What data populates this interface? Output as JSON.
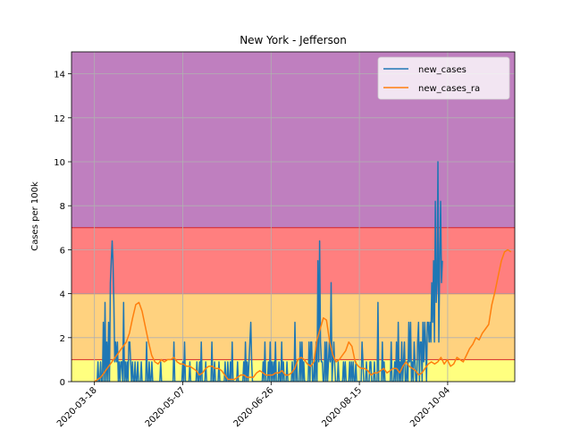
{
  "chart_data": {
    "type": "line",
    "title": "New York - Jefferson",
    "xlabel": "",
    "ylabel": "Cases per 100k",
    "ylim": [
      0,
      15
    ],
    "xlim": [
      "2020-03-05",
      "2020-11-11"
    ],
    "yticks": [
      0,
      2,
      4,
      6,
      8,
      10,
      12,
      14
    ],
    "xticks": [
      "2020-03-18",
      "2020-05-07",
      "2020-06-26",
      "2020-08-15",
      "2020-10-04"
    ],
    "grid": true,
    "legend_position": "top-right",
    "bands": [
      {
        "from": 0,
        "to": 1,
        "color": "#ffff7f"
      },
      {
        "from": 1,
        "to": 4,
        "color": "#ffd27f"
      },
      {
        "from": 4,
        "to": 7,
        "color": "#ff7f7f"
      },
      {
        "from": 7,
        "to": 15,
        "color": "#bf7fbf"
      }
    ],
    "band_edge_color": "#d62728",
    "series": [
      {
        "name": "new_cases",
        "color": "#1f77b4",
        "start": "2020-03-18",
        "values": [
          0,
          0,
          0,
          0,
          0.9,
          0,
          0,
          0.9,
          0,
          0,
          2.7,
          0,
          3.6,
          0,
          1.8,
          0,
          2.7,
          0,
          4.5,
          5.5,
          6.4,
          5.5,
          3.6,
          0.9,
          1.8,
          0.9,
          1.8,
          0,
          0.9,
          0,
          0.9,
          0.9,
          0,
          3.6,
          0,
          0.9,
          0,
          0.9,
          0,
          1.8,
          1.8,
          0.9,
          0,
          0.9,
          0,
          0,
          0.9,
          0,
          0,
          0.9,
          0,
          0,
          0,
          0.9,
          0,
          0,
          0,
          0,
          0,
          1.8,
          0,
          0,
          0.9,
          0,
          0,
          0.9,
          0,
          0,
          0,
          0,
          0,
          0,
          0,
          0,
          0,
          0.9,
          0,
          0,
          0,
          0,
          0,
          0,
          0,
          0,
          0,
          0,
          0,
          0,
          0,
          0,
          1.8,
          0,
          0,
          0,
          0,
          0,
          0,
          0,
          0,
          0,
          0.9,
          0,
          1.8,
          0,
          0,
          0,
          0,
          0,
          0.9,
          0,
          0,
          0,
          0,
          0,
          0,
          0,
          0.9,
          0,
          0,
          0.9,
          0,
          1.8,
          0,
          0,
          0,
          0,
          0.9,
          0,
          0,
          0,
          0,
          0,
          0,
          1.8,
          0,
          0,
          0.9,
          0,
          0,
          0,
          0,
          0.9,
          0,
          0,
          0,
          0,
          0,
          0,
          0.9,
          0,
          0,
          0.9,
          0,
          0,
          0.9,
          0,
          1.8,
          0,
          0,
          0,
          0,
          0,
          0.9,
          0,
          0,
          0,
          0,
          0,
          0,
          0.9,
          0,
          1.8,
          0,
          0.9,
          0,
          0.9,
          1.8,
          2.7,
          0.9,
          0,
          0,
          0,
          0,
          0,
          0,
          0,
          0,
          0,
          0,
          0,
          0,
          0.9,
          0,
          1.8,
          0,
          0,
          0,
          0.9,
          0,
          1.8,
          0,
          0.9,
          0,
          0.9,
          0,
          1.8,
          0,
          0,
          0,
          0.9,
          0,
          0,
          1.8,
          0,
          0.9,
          0,
          0,
          0,
          0.9,
          0,
          0,
          0,
          0,
          0,
          0.9,
          0,
          0,
          2.7,
          0,
          0.9,
          0,
          0,
          0,
          1.8,
          0,
          1.8,
          0,
          0.9,
          0,
          0,
          0,
          0,
          0,
          1.8,
          0,
          1.8,
          1.8,
          0,
          0,
          0.9,
          0,
          1.8,
          0,
          5.5,
          0.9,
          6.4,
          1.8,
          0.9,
          0.9,
          0,
          0,
          1.8,
          0,
          1.8,
          0,
          0.9,
          1.8,
          0.9,
          4.5,
          0,
          0.9,
          1.8,
          0.9,
          0,
          0,
          0,
          0.9,
          0,
          0,
          0,
          0,
          0,
          0.9,
          0,
          0.9,
          0,
          0,
          0,
          0,
          0.9,
          0,
          0.9,
          0,
          0.9,
          0,
          0,
          0.9,
          0,
          0,
          0,
          0,
          0,
          0,
          1.8,
          0.9,
          0,
          0,
          0,
          0.9,
          0,
          0,
          0,
          0.9,
          0.9,
          0,
          0,
          0,
          0.9,
          0,
          0,
          0,
          3.6,
          0,
          0,
          0,
          0,
          1.8,
          0,
          0.9,
          0,
          0,
          0,
          0,
          0,
          0,
          0,
          1.8,
          0,
          0,
          0,
          0.9,
          0,
          1.8,
          0,
          2.7,
          0,
          0.9,
          0,
          1.8,
          0,
          0.9,
          1.8,
          0,
          0,
          0.9,
          0,
          2.7,
          0.9,
          2.7,
          0,
          0.9,
          0,
          1.8,
          0.9,
          0,
          0,
          1.8,
          2.7,
          0,
          1.8,
          1.8,
          0,
          2.7,
          0.9,
          2.7,
          1.8,
          0,
          2.7,
          2.7,
          1.8,
          2.7,
          1.8,
          4.5,
          2.7,
          5.5,
          1.8,
          8.2,
          3.6,
          4.5,
          10.0,
          1.8,
          5.5,
          8.2,
          4.5,
          5.5
        ],
        "step_days": 0.5
      },
      {
        "name": "new_cases_ra",
        "color": "#ff7f0e",
        "start": "2020-03-18",
        "values": [
          0,
          0.1,
          0.2,
          0.4,
          0.6,
          0.8,
          1.0,
          1.2,
          1.4,
          1.6,
          1.8,
          2.2,
          2.9,
          3.5,
          3.6,
          3.2,
          2.5,
          1.8,
          1.2,
          0.9,
          0.8,
          1.0,
          0.9,
          1.0,
          1.0,
          1.1,
          0.9,
          0.8,
          0.8,
          0.7,
          0.7,
          0.6,
          0.5,
          0.3,
          0.4,
          0.6,
          0.7,
          0.7,
          0.6,
          0.6,
          0.5,
          0.3,
          0.1,
          0.1,
          0.1,
          0.2,
          0.3,
          0.3,
          0.2,
          0.2,
          0.2,
          0.4,
          0.5,
          0.4,
          0.3,
          0.3,
          0.3,
          0.4,
          0.4,
          0.5,
          0.3,
          0.3,
          0.4,
          0.6,
          1.0,
          1.1,
          1.0,
          0.8,
          0.7,
          0.9,
          1.9,
          2.4,
          2.9,
          2.8,
          1.8,
          1.2,
          0.9,
          1.0,
          1.2,
          1.4,
          1.8,
          1.6,
          0.9,
          0.7,
          0.6,
          0.6,
          0.5,
          0.3,
          0.4,
          0.4,
          0.5,
          0.6,
          0.4,
          0.5,
          0.6,
          0.6,
          0.4,
          0.7,
          0.9,
          0.7,
          0.6,
          0.5,
          0.3,
          0.4,
          0.6,
          0.8,
          0.9,
          0.8,
          0.9,
          1.1,
          0.8,
          1.0,
          0.7,
          0.8,
          1.1,
          1.0,
          0.9,
          1.2,
          1.5,
          1.7,
          2.0,
          1.9,
          2.2,
          2.4,
          2.6,
          3.5,
          4.1,
          4.8,
          5.5,
          5.9,
          6.0,
          5.9
        ],
        "step_days": 1.8
      }
    ]
  }
}
